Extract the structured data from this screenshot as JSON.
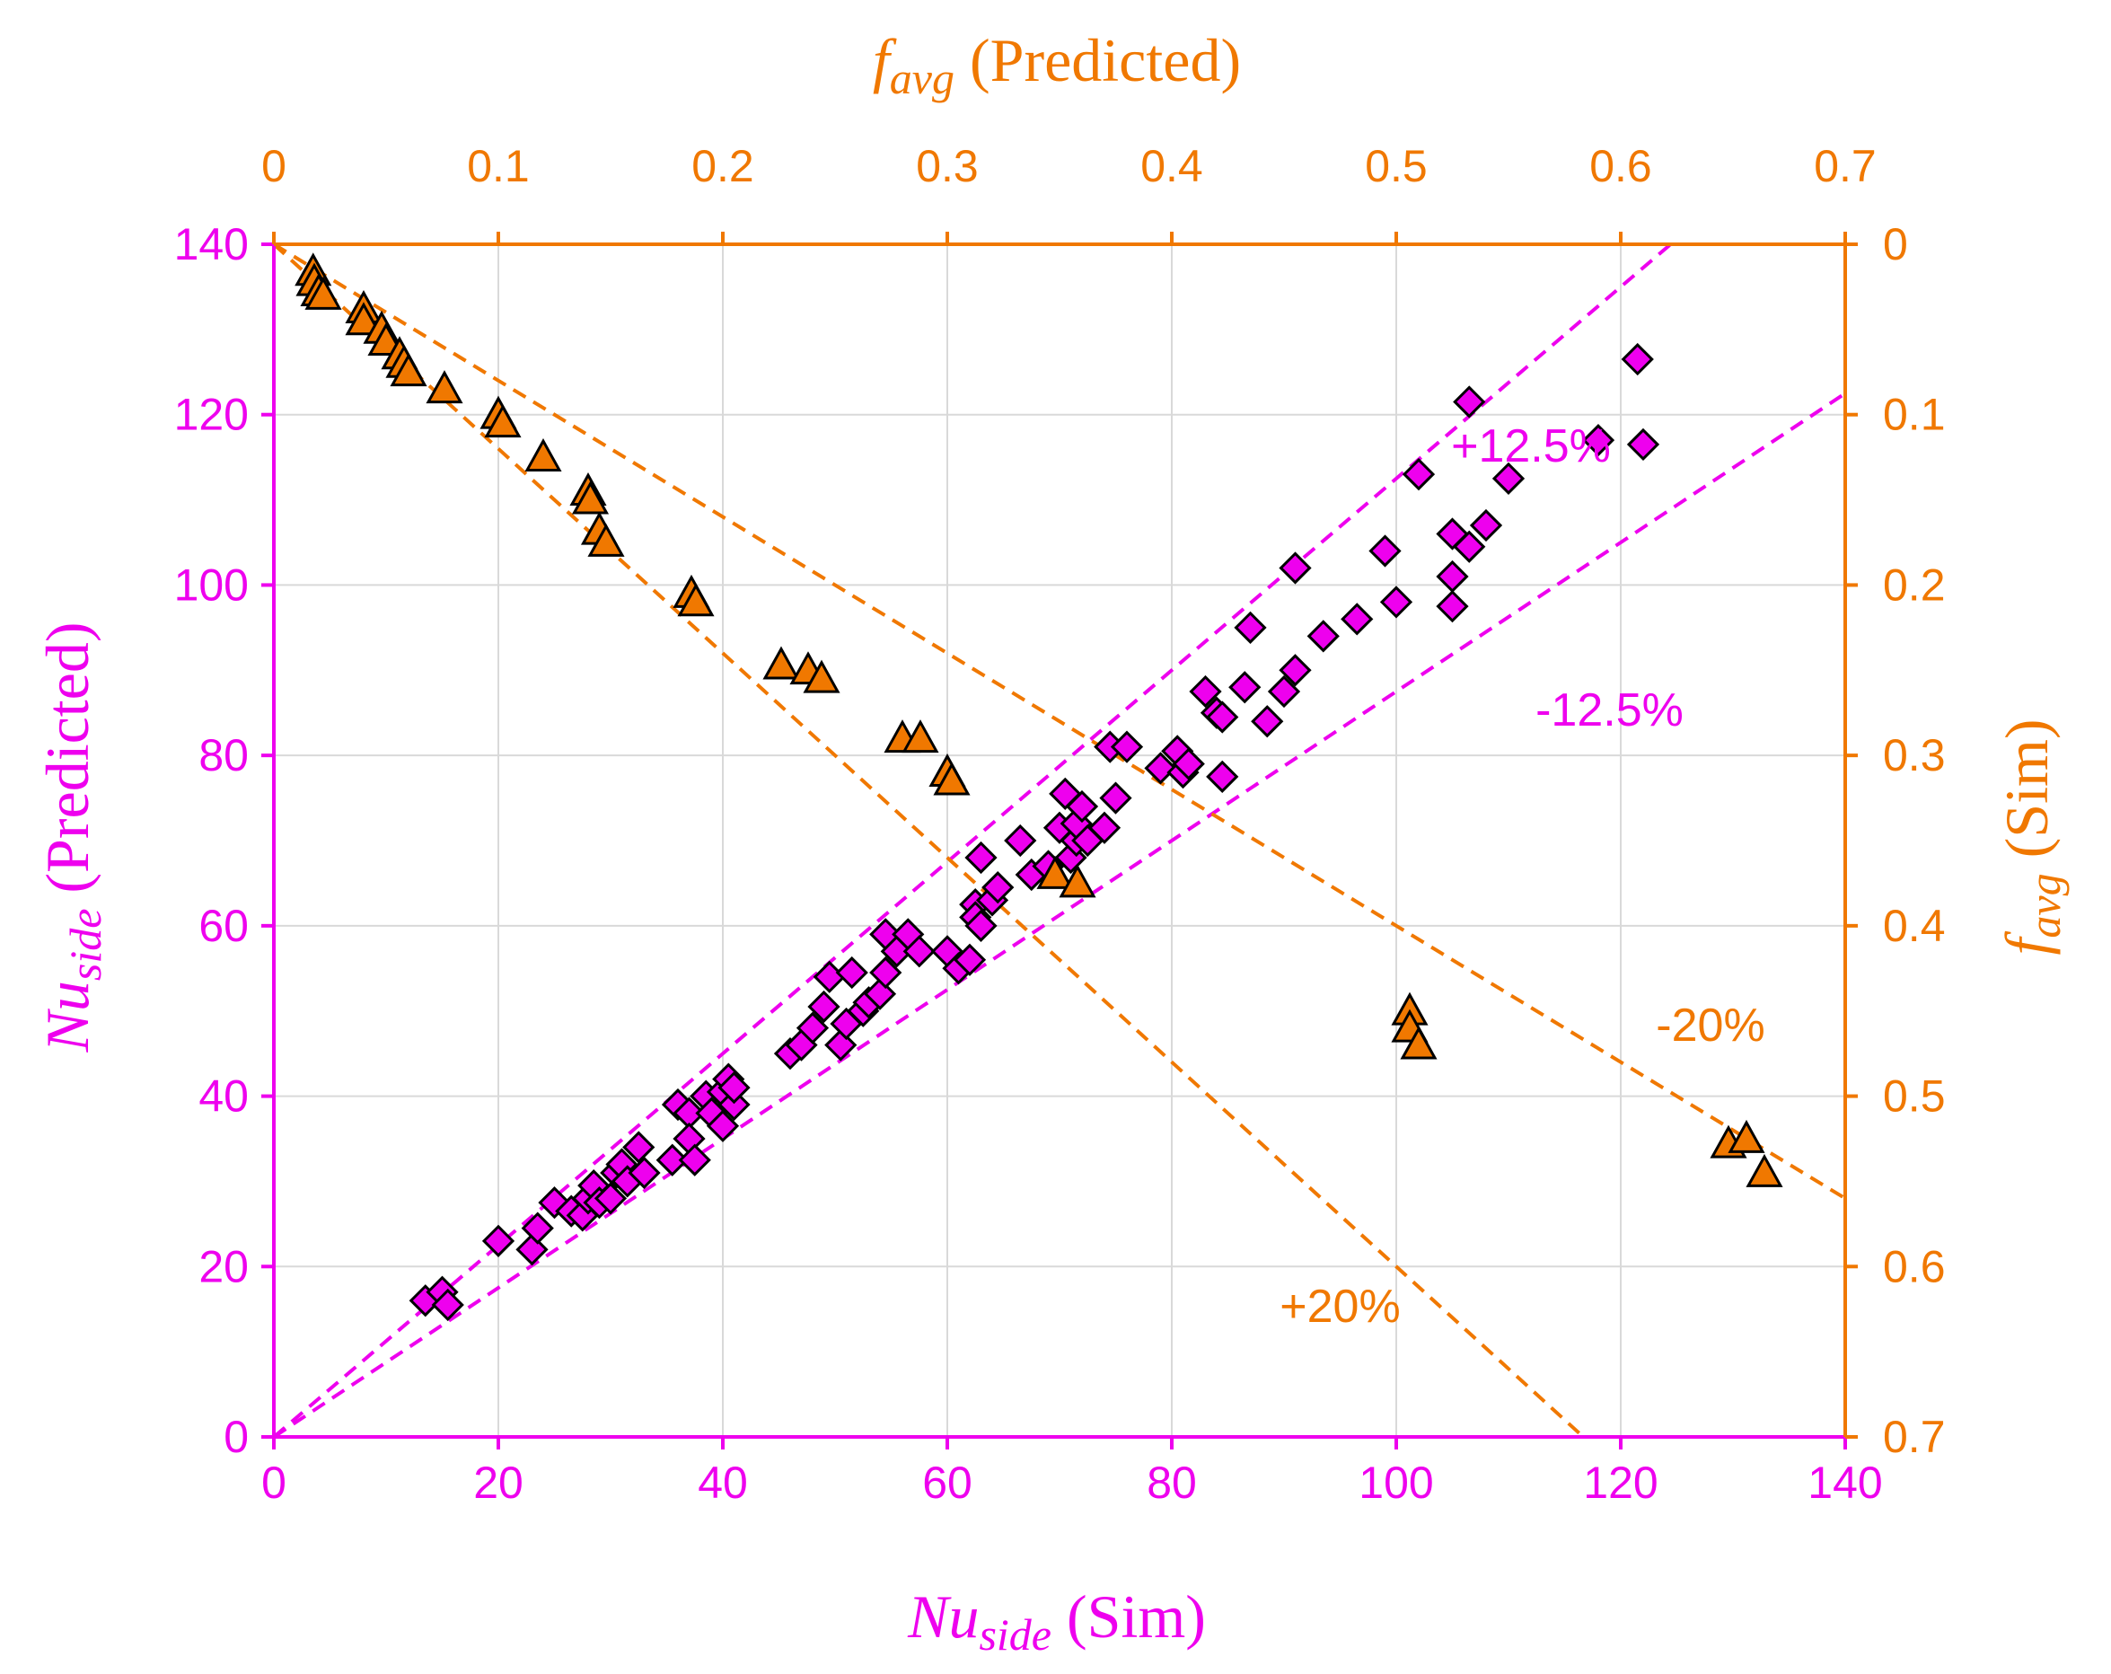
{
  "chart_data": {
    "type": "scatter",
    "x_bottom": {
      "label_var": "Nu",
      "label_sub": "side",
      "label_rest": " (Sim)",
      "range": [
        0,
        140
      ],
      "ticks": [
        0,
        20,
        40,
        60,
        80,
        100,
        120,
        140
      ],
      "color": "#ee00ee"
    },
    "y_left": {
      "label_var": "Nu",
      "label_sub": "side",
      "label_rest": " (Predicted)",
      "range": [
        0,
        140
      ],
      "ticks": [
        0,
        20,
        40,
        60,
        80,
        100,
        120,
        140
      ],
      "color": "#ee00ee"
    },
    "x_top": {
      "label_var": "f",
      "label_sub": "avg",
      "label_rest": " (Predicted)",
      "range": [
        0,
        0.7
      ],
      "ticks": [
        "0",
        "0.1",
        "0.2",
        "0.3",
        "0.4",
        "0.5",
        "0.6",
        "0.7"
      ],
      "color": "#f07800"
    },
    "y_right": {
      "label_var": "f",
      "label_sub": "avg",
      "label_rest": " (Sim)",
      "range": [
        0,
        0.7
      ],
      "reversed": true,
      "ticks": [
        "0",
        "0.1",
        "0.2",
        "0.3",
        "0.4",
        "0.5",
        "0.6",
        "0.7"
      ],
      "color": "#f07800"
    },
    "grid": true,
    "annotations": [
      {
        "text": "+12.5%",
        "x": 112,
        "y": 114.5,
        "color": "#ee00ee"
      },
      {
        "text": "-12.5%",
        "x": 119,
        "y": 83.5,
        "color": "#ee00ee"
      },
      {
        "text": "+20%",
        "x": 95,
        "y": 13.5,
        "color": "#f07800"
      },
      {
        "text": "-20%",
        "x": 128,
        "y": 46.5,
        "color": "#f07800"
      }
    ],
    "reference_lines": [
      {
        "name": "+12.5%",
        "axes": "nu",
        "slope": 1.125,
        "color": "#ee00ee"
      },
      {
        "name": "-12.5%",
        "axes": "nu",
        "slope": 0.875,
        "color": "#ee00ee"
      },
      {
        "name": "+20%",
        "axes": "f",
        "slope": 1.2,
        "color": "#f07800"
      },
      {
        "name": "-20%",
        "axes": "f",
        "slope": 0.8,
        "color": "#f07800"
      }
    ],
    "series": [
      {
        "marker": "diamond",
        "axes": "bottom-left",
        "color": "#ee00ee",
        "points": [
          [
            13.5,
            16
          ],
          [
            15,
            17
          ],
          [
            15.5,
            15.5
          ],
          [
            20,
            23
          ],
          [
            23,
            22
          ],
          [
            23.5,
            24.5
          ],
          [
            25,
            27.5
          ],
          [
            26.5,
            26.5
          ],
          [
            27.5,
            26
          ],
          [
            28,
            28
          ],
          [
            28.5,
            29.5
          ],
          [
            29,
            27.5
          ],
          [
            30,
            28
          ],
          [
            30.5,
            31
          ],
          [
            31,
            32
          ],
          [
            31.5,
            30
          ],
          [
            32.5,
            34
          ],
          [
            33,
            31
          ],
          [
            35.5,
            32.5
          ],
          [
            36,
            39
          ],
          [
            37,
            38
          ],
          [
            37,
            35
          ],
          [
            37.5,
            32.5
          ],
          [
            38.5,
            40
          ],
          [
            39,
            38
          ],
          [
            40,
            36.5
          ],
          [
            40,
            40.5
          ],
          [
            40.5,
            42
          ],
          [
            41,
            39
          ],
          [
            41,
            41
          ],
          [
            46,
            45
          ],
          [
            47,
            46
          ],
          [
            48,
            48
          ],
          [
            49,
            50.5
          ],
          [
            49.5,
            54
          ],
          [
            50.5,
            46
          ],
          [
            51,
            48.5
          ],
          [
            51.5,
            54.5
          ],
          [
            52.5,
            50
          ],
          [
            53,
            51
          ],
          [
            54,
            52
          ],
          [
            54.5,
            54.5
          ],
          [
            54.5,
            59
          ],
          [
            55.5,
            57
          ],
          [
            56.5,
            59
          ],
          [
            57.5,
            57
          ],
          [
            60,
            57
          ],
          [
            61,
            55
          ],
          [
            62,
            56
          ],
          [
            62.5,
            62.5
          ],
          [
            62.5,
            61
          ],
          [
            63,
            60
          ],
          [
            63,
            68
          ],
          [
            64,
            63
          ],
          [
            64.5,
            64.5
          ],
          [
            66.5,
            70
          ],
          [
            67.5,
            66
          ],
          [
            69,
            67
          ],
          [
            70,
            71.5
          ],
          [
            70.5,
            75.5
          ],
          [
            71,
            68
          ],
          [
            71.5,
            70
          ],
          [
            71.5,
            72
          ],
          [
            72,
            74
          ],
          [
            72.5,
            70
          ],
          [
            74,
            71.5
          ],
          [
            74.5,
            81
          ],
          [
            75,
            75
          ],
          [
            76,
            81
          ],
          [
            79,
            78.5
          ],
          [
            80.5,
            80.5
          ],
          [
            81,
            78
          ],
          [
            81.5,
            79
          ],
          [
            83,
            87.5
          ],
          [
            84,
            85
          ],
          [
            84.5,
            84.5
          ],
          [
            84.5,
            77.5
          ],
          [
            86.5,
            88
          ],
          [
            87,
            95
          ],
          [
            88.5,
            84
          ],
          [
            90,
            87.5
          ],
          [
            91,
            102
          ],
          [
            91,
            90
          ],
          [
            93.5,
            94
          ],
          [
            96.5,
            96
          ],
          [
            99,
            104
          ],
          [
            100,
            98
          ],
          [
            102,
            113
          ],
          [
            105,
            106
          ],
          [
            105,
            101
          ],
          [
            105,
            97.5
          ],
          [
            106.5,
            121.5
          ],
          [
            106.5,
            104.5
          ],
          [
            108,
            107
          ],
          [
            110,
            112.5
          ],
          [
            118,
            117
          ],
          [
            121.5,
            126.5
          ],
          [
            122,
            116.5
          ]
        ]
      },
      {
        "marker": "triangle",
        "axes": "top-right",
        "color": "#f07800",
        "points": [
          [
            0.0175,
            0.016
          ],
          [
            0.018,
            0.022
          ],
          [
            0.02,
            0.028
          ],
          [
            0.022,
            0.03
          ],
          [
            0.04,
            0.038
          ],
          [
            0.04,
            0.045
          ],
          [
            0.048,
            0.05
          ],
          [
            0.05,
            0.057
          ],
          [
            0.056,
            0.065
          ],
          [
            0.058,
            0.07
          ],
          [
            0.06,
            0.075
          ],
          [
            0.076,
            0.085
          ],
          [
            0.1,
            0.1
          ],
          [
            0.102,
            0.105
          ],
          [
            0.12,
            0.125
          ],
          [
            0.14,
            0.145
          ],
          [
            0.141,
            0.15
          ],
          [
            0.145,
            0.168
          ],
          [
            0.148,
            0.175
          ],
          [
            0.186,
            0.205
          ],
          [
            0.188,
            0.21
          ],
          [
            0.226,
            0.247
          ],
          [
            0.238,
            0.25
          ],
          [
            0.244,
            0.255
          ],
          [
            0.28,
            0.29
          ],
          [
            0.288,
            0.29
          ],
          [
            0.3,
            0.31
          ],
          [
            0.302,
            0.315
          ],
          [
            0.348,
            0.37
          ],
          [
            0.358,
            0.375
          ],
          [
            0.506,
            0.45
          ],
          [
            0.506,
            0.46
          ],
          [
            0.51,
            0.47
          ],
          [
            0.648,
            0.528
          ],
          [
            0.656,
            0.525
          ],
          [
            0.664,
            0.545
          ]
        ]
      }
    ]
  }
}
